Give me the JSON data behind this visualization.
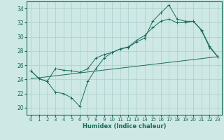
{
  "xlabel": "Humidex (Indice chaleur)",
  "background_color": "#cde8e5",
  "grid_color": "#a8cece",
  "line_color": "#1a6b5a",
  "xlim": [
    -0.5,
    23.5
  ],
  "ylim": [
    19,
    35
  ],
  "yticks": [
    20,
    22,
    24,
    26,
    28,
    30,
    32,
    34
  ],
  "xticks": [
    0,
    1,
    2,
    3,
    4,
    5,
    6,
    7,
    8,
    9,
    10,
    11,
    12,
    13,
    14,
    15,
    16,
    17,
    18,
    19,
    20,
    21,
    22,
    23
  ],
  "series1_x": [
    0,
    1,
    2,
    3,
    4,
    5,
    6,
    7,
    8,
    9,
    10,
    11,
    12,
    13,
    14,
    15,
    16,
    17,
    18,
    19,
    20,
    21,
    22,
    23
  ],
  "series1_y": [
    25.2,
    24.1,
    23.7,
    22.2,
    22.0,
    21.4,
    20.2,
    23.7,
    25.5,
    27.0,
    27.8,
    28.3,
    28.5,
    29.3,
    29.8,
    32.2,
    33.4,
    34.5,
    32.5,
    32.2,
    32.2,
    30.9,
    28.5,
    27.2
  ],
  "series2_x": [
    0,
    1,
    2,
    3,
    4,
    5,
    6,
    7,
    8,
    9,
    10,
    11,
    12,
    13,
    14,
    15,
    16,
    17,
    18,
    19,
    20,
    21,
    22,
    23
  ],
  "series2_y": [
    25.2,
    24.1,
    23.7,
    25.5,
    25.3,
    25.2,
    25.0,
    25.5,
    27.0,
    27.5,
    27.8,
    28.3,
    28.6,
    29.5,
    30.2,
    31.3,
    32.2,
    32.5,
    32.0,
    32.0,
    32.2,
    31.0,
    28.7,
    27.2
  ],
  "series3_x": [
    0,
    23
  ],
  "series3_y": [
    24.1,
    27.2
  ]
}
